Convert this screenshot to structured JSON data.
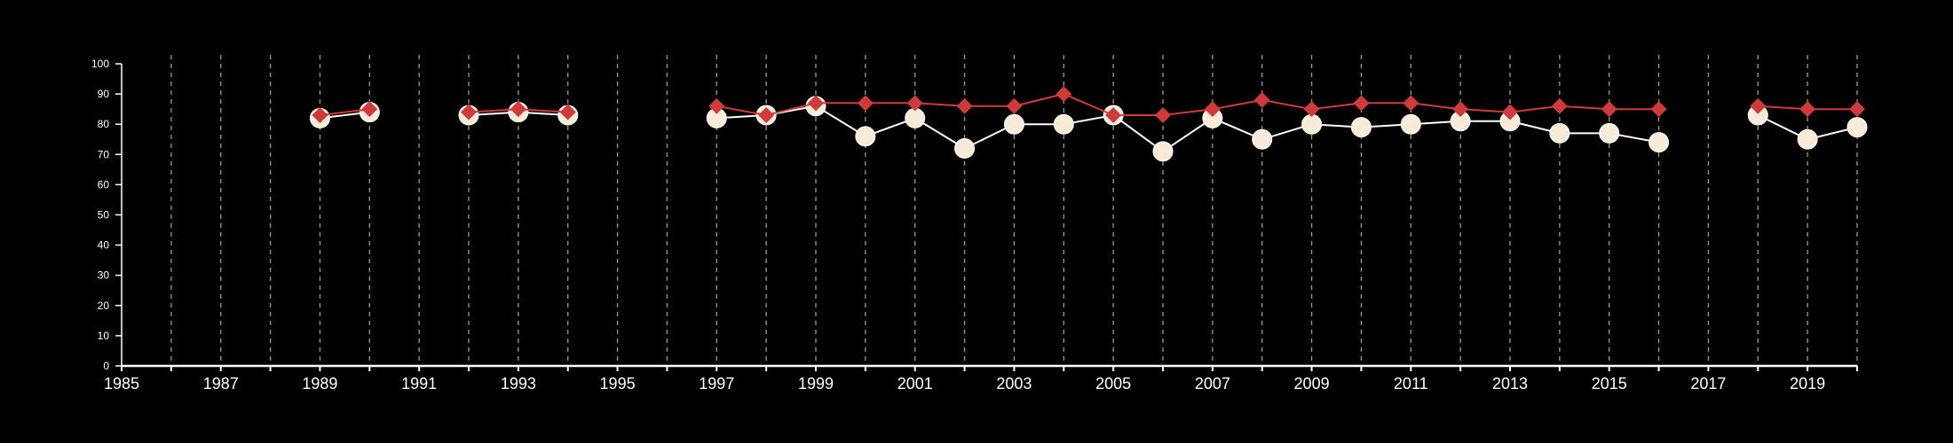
{
  "colors": {
    "background": "#000000",
    "axis": "#ffffff",
    "grid": "#9a9a9a",
    "series_red": "#d13a3a",
    "series_cream": "#f8ecd9",
    "series_cream_line": "#ffffff"
  },
  "chart_data": {
    "type": "line",
    "title": "",
    "xlabel": "",
    "ylabel": "",
    "xlim": [
      1985,
      2020
    ],
    "ylim": [
      0,
      100
    ],
    "yticks": [
      0,
      10,
      20,
      30,
      40,
      50,
      60,
      70,
      80,
      90,
      100
    ],
    "xticks_labeled": [
      1985,
      1987,
      1989,
      1991,
      1993,
      1995,
      1997,
      1999,
      2001,
      2003,
      2005,
      2007,
      2009,
      2011,
      2013,
      2015,
      2017,
      2019
    ],
    "vertical_gridlines": "dashed, every year",
    "legend": "none",
    "series": [
      {
        "marker": "diamond",
        "color": "#d13a3a",
        "points": [
          [
            1989,
            83
          ],
          [
            1990,
            85
          ],
          [
            1992,
            84
          ],
          [
            1993,
            85
          ],
          [
            1994,
            84
          ],
          [
            1997,
            86
          ],
          [
            1998,
            83
          ],
          [
            1999,
            87
          ],
          [
            2000,
            87
          ],
          [
            2001,
            87
          ],
          [
            2002,
            86
          ],
          [
            2003,
            86
          ],
          [
            2004,
            90
          ],
          [
            2005,
            83
          ],
          [
            2006,
            83
          ],
          [
            2007,
            85
          ],
          [
            2008,
            88
          ],
          [
            2009,
            85
          ],
          [
            2010,
            87
          ],
          [
            2011,
            87
          ],
          [
            2012,
            85
          ],
          [
            2013,
            84
          ],
          [
            2014,
            86
          ],
          [
            2015,
            85
          ],
          [
            2016,
            85
          ],
          [
            2018,
            86
          ],
          [
            2019,
            85
          ],
          [
            2020,
            85
          ]
        ]
      },
      {
        "marker": "circle",
        "color": "#f8ecd9",
        "points": [
          [
            1989,
            82
          ],
          [
            1990,
            84
          ],
          [
            1992,
            83
          ],
          [
            1993,
            84
          ],
          [
            1994,
            83
          ],
          [
            1997,
            82
          ],
          [
            1998,
            83
          ],
          [
            1999,
            86
          ],
          [
            2000,
            76
          ],
          [
            2001,
            82
          ],
          [
            2002,
            72
          ],
          [
            2003,
            80
          ],
          [
            2004,
            80
          ],
          [
            2005,
            83
          ],
          [
            2006,
            71
          ],
          [
            2007,
            82
          ],
          [
            2008,
            75
          ],
          [
            2009,
            80
          ],
          [
            2010,
            79
          ],
          [
            2011,
            80
          ],
          [
            2012,
            81
          ],
          [
            2013,
            81
          ],
          [
            2014,
            77
          ],
          [
            2015,
            77
          ],
          [
            2016,
            74
          ],
          [
            2018,
            83
          ],
          [
            2019,
            75
          ],
          [
            2020,
            79
          ]
        ]
      }
    ]
  }
}
